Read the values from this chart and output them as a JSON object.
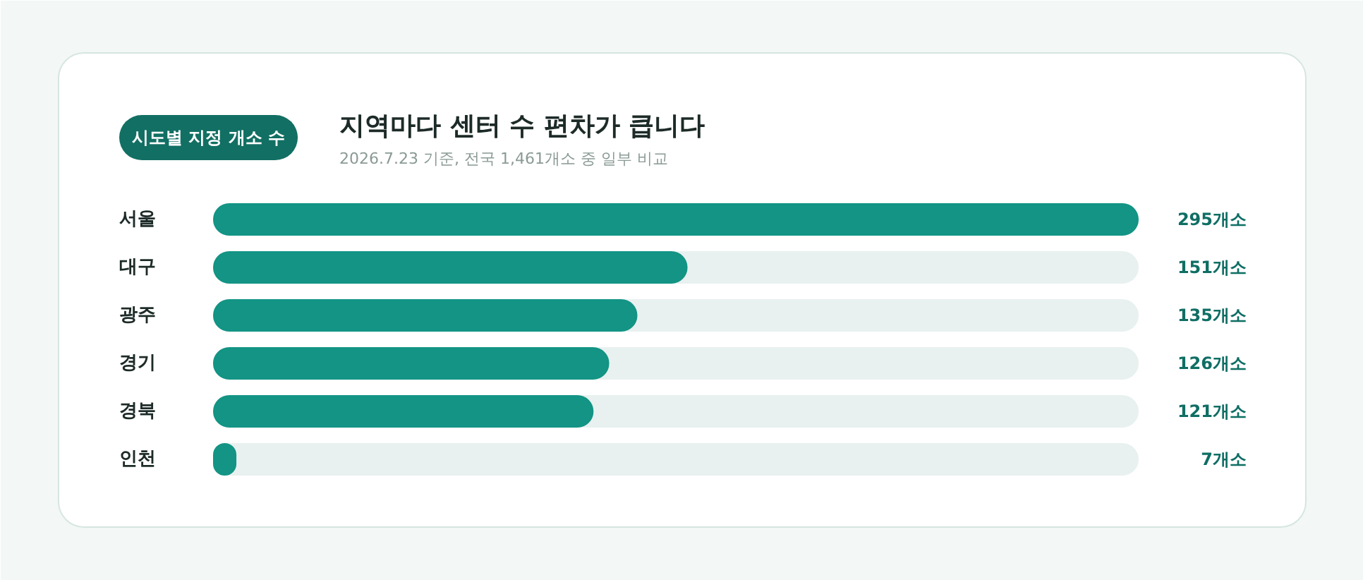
{
  "chart_data": {
    "type": "bar",
    "orientation": "horizontal",
    "title": "지역마다 센터 수 편차가 큽니다",
    "subtitle": "2026.7.23 기준, 전국 1,461개소 중 일부 비교",
    "annotations": [
      "시도별 지정 개소 수"
    ],
    "categories": [
      "서울",
      "대구",
      "광주",
      "경기",
      "경북",
      "인천"
    ],
    "values": [
      295,
      151,
      135,
      126,
      121,
      7
    ],
    "value_labels": [
      "295개소",
      "151개소",
      "135개소",
      "126개소",
      "121개소",
      "7개소"
    ],
    "color": "#139485"
  }
}
